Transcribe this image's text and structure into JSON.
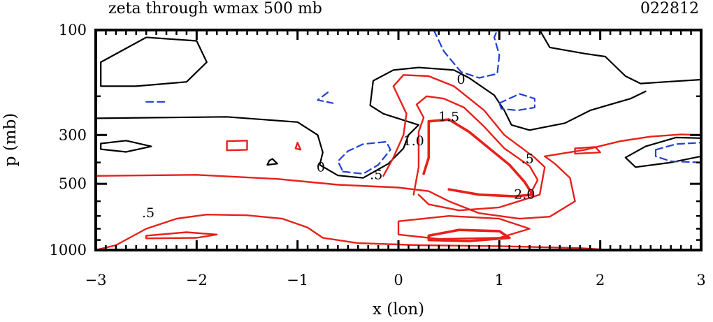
{
  "chart_data": {
    "type": "contour",
    "title": "zeta through wmax 500 mb",
    "date_label": "022812",
    "xlabel": "x (lon)",
    "ylabel": "p (mb)",
    "xlim": [
      -3,
      3
    ],
    "ylim": [
      1000,
      100
    ],
    "y_scale": "log",
    "x_ticks": [
      -3,
      -2,
      -1,
      0,
      1,
      2,
      3
    ],
    "x_tick_labels": [
      "−3",
      "−2",
      "−1",
      "0",
      "1",
      "2",
      "3"
    ],
    "y_ticks": [
      100,
      300,
      500,
      1000
    ],
    "y_tick_labels": [
      "100",
      "300",
      "500",
      "1000"
    ],
    "colors": {
      "positive": "#e8201a",
      "zero": "#000000",
      "negative": "#1f3fd6"
    },
    "contour_labels": [
      {
        "text": "0",
        "x": 0.62,
        "p": 168
      },
      {
        "text": "1.5",
        "x": 0.5,
        "p": 248
      },
      {
        "text": "1.0",
        "x": 0.15,
        "p": 320
      },
      {
        "text": ".5",
        "x": 1.28,
        "p": 385
      },
      {
        "text": "0",
        "x": -0.77,
        "p": 420
      },
      {
        "text": ".5",
        "x": -0.22,
        "p": 455
      },
      {
        "text": "2.0",
        "x": 1.25,
        "p": 560
      },
      {
        "text": ".5",
        "x": -2.48,
        "p": 680
      }
    ],
    "contours": [
      {
        "level": 0,
        "points": [
          [
            -2.95,
            180
          ],
          [
            -2.6,
            180
          ],
          [
            -2.1,
            172
          ],
          [
            -1.9,
            140
          ],
          [
            -2.0,
            112
          ],
          [
            -2.5,
            108
          ],
          [
            -2.95,
            140
          ]
        ],
        "closed": true
      },
      {
        "level": 0,
        "points": [
          [
            -3.0,
            252
          ],
          [
            -2.4,
            250
          ],
          [
            -1.7,
            248
          ],
          [
            -1.0,
            262
          ],
          [
            -0.8,
            300
          ],
          [
            -0.75,
            360
          ],
          [
            -0.78,
            410
          ],
          [
            -0.6,
            458
          ],
          [
            -0.35,
            470
          ],
          [
            -0.1,
            405
          ],
          [
            0.05,
            345
          ],
          [
            0.1,
            300
          ],
          [
            0.2,
            270
          ],
          [
            -0.15,
            240
          ],
          [
            -0.28,
            220
          ],
          [
            -0.25,
            170
          ],
          [
            -0.05,
            152
          ],
          [
            0.2,
            148
          ],
          [
            0.55,
            152
          ],
          [
            0.7,
            165
          ],
          [
            0.95,
            198
          ],
          [
            1.05,
            232
          ],
          [
            1.12,
            270
          ],
          [
            1.3,
            285
          ],
          [
            1.65,
            265
          ],
          [
            1.9,
            232
          ],
          [
            2.1,
            218
          ],
          [
            2.3,
            205
          ],
          [
            2.45,
            190
          ]
        ],
        "closed": false
      },
      {
        "level": 0,
        "points": [
          [
            -2.95,
            328
          ],
          [
            -2.7,
            318
          ],
          [
            -2.45,
            338
          ],
          [
            -2.7,
            358
          ],
          [
            -2.95,
            348
          ]
        ],
        "closed": true
      },
      {
        "level": 0,
        "points": [
          [
            -1.25,
            385
          ],
          [
            -1.2,
            405
          ],
          [
            -1.3,
            410
          ],
          [
            -1.28,
            392
          ]
        ],
        "closed": true
      },
      {
        "level": 0,
        "points": [
          [
            3.0,
            310
          ],
          [
            2.75,
            308
          ],
          [
            2.45,
            338
          ],
          [
            2.25,
            380
          ],
          [
            2.35,
            420
          ],
          [
            2.7,
            400
          ],
          [
            3.0,
            375
          ]
        ],
        "closed": false
      },
      {
        "level": 0,
        "points": [
          [
            1.4,
            100
          ],
          [
            1.5,
            120
          ],
          [
            1.85,
            128
          ],
          [
            2.05,
            132
          ],
          [
            2.25,
            162
          ],
          [
            2.4,
            175
          ],
          [
            2.65,
            172
          ],
          [
            3.0,
            168
          ]
        ],
        "closed": false
      },
      {
        "level": -0.5,
        "points": [
          [
            0.35,
            100
          ],
          [
            0.45,
            125
          ],
          [
            0.62,
            155
          ],
          [
            0.8,
            165
          ],
          [
            0.98,
            158
          ],
          [
            1.0,
            130
          ],
          [
            0.95,
            108
          ],
          [
            0.98,
            100
          ]
        ],
        "closed": false
      },
      {
        "level": -0.5,
        "points": [
          [
            1.0,
            215
          ],
          [
            1.2,
            195
          ],
          [
            1.35,
            205
          ],
          [
            1.35,
            225
          ],
          [
            1.18,
            232
          ],
          [
            1.02,
            228
          ]
        ],
        "closed": true
      },
      {
        "level": -0.5,
        "points": [
          [
            -0.55,
            440
          ],
          [
            -0.35,
            450
          ],
          [
            -0.2,
            410
          ],
          [
            -0.08,
            350
          ],
          [
            -0.12,
            322
          ],
          [
            -0.35,
            330
          ],
          [
            -0.5,
            355
          ],
          [
            -0.6,
            395
          ]
        ],
        "closed": true
      },
      {
        "level": -0.5,
        "points": [
          [
            2.55,
            350
          ],
          [
            2.75,
            330
          ],
          [
            3.0,
            325
          ],
          [
            3.0,
            400
          ],
          [
            2.7,
            395
          ],
          [
            2.55,
            375
          ]
        ],
        "closed": true
      },
      {
        "level": -0.5,
        "points": [
          [
            -2.5,
            212
          ],
          [
            -2.3,
            212
          ]
        ],
        "closed": false
      },
      {
        "level": -0.5,
        "points": [
          [
            -0.7,
            192
          ],
          [
            -0.8,
            208
          ],
          [
            -0.65,
            215
          ]
        ],
        "closed": false
      },
      {
        "level": 0.5,
        "points": [
          [
            -3.0,
            460
          ],
          [
            -2.0,
            455
          ],
          [
            -1.2,
            475
          ],
          [
            -0.6,
            505
          ],
          [
            0.0,
            520
          ],
          [
            0.3,
            540
          ],
          [
            0.5,
            600
          ],
          [
            0.8,
            680
          ],
          [
            1.2,
            720
          ],
          [
            1.5,
            705
          ],
          [
            1.75,
            600
          ],
          [
            1.7,
            470
          ],
          [
            1.55,
            405
          ],
          [
            1.45,
            375
          ],
          [
            1.85,
            350
          ],
          [
            2.2,
            320
          ],
          [
            2.5,
            305
          ],
          [
            2.8,
            298
          ],
          [
            3.0,
            300
          ]
        ],
        "closed": false
      },
      {
        "level": 0.5,
        "points": [
          [
            -3.0,
            1000
          ],
          [
            -2.8,
            950
          ],
          [
            -2.5,
            800
          ],
          [
            -2.2,
            720
          ],
          [
            -1.9,
            690
          ],
          [
            -1.5,
            695
          ],
          [
            -1.15,
            720
          ],
          [
            -0.9,
            790
          ],
          [
            -0.75,
            880
          ],
          [
            -0.4,
            930
          ],
          [
            0.2,
            950
          ],
          [
            1.0,
            960
          ],
          [
            1.8,
            980
          ],
          [
            2.1,
            1000
          ]
        ],
        "closed": false
      },
      {
        "level": 0.5,
        "points": [
          [
            -1.7,
            320
          ],
          [
            -1.5,
            318
          ],
          [
            -1.5,
            350
          ],
          [
            -1.7,
            352
          ]
        ],
        "closed": true
      },
      {
        "level": 0.5,
        "points": [
          [
            -1.0,
            325
          ],
          [
            -0.97,
            350
          ],
          [
            -1.02,
            345
          ]
        ],
        "closed": true
      },
      {
        "level": 0.5,
        "points": [
          [
            1.75,
            345
          ],
          [
            1.95,
            340
          ],
          [
            2.0,
            360
          ],
          [
            1.75,
            365
          ]
        ],
        "closed": true
      },
      {
        "level": 0.5,
        "points": [
          [
            -2.5,
            860
          ],
          [
            -2.1,
            830
          ],
          [
            -1.8,
            850
          ],
          [
            -2.0,
            880
          ],
          [
            -2.5,
            885
          ]
        ],
        "closed": true
      },
      {
        "level": 1.0,
        "points": [
          [
            -0.15,
            460
          ],
          [
            -0.05,
            380
          ],
          [
            0.05,
            300
          ],
          [
            0.08,
            240
          ],
          [
            -0.05,
            180
          ],
          [
            0.05,
            160
          ],
          [
            0.3,
            162
          ],
          [
            0.55,
            180
          ],
          [
            0.85,
            232
          ],
          [
            1.05,
            300
          ],
          [
            1.35,
            380
          ],
          [
            1.45,
            420
          ],
          [
            1.4,
            560
          ],
          [
            1.0,
            640
          ],
          [
            0.6,
            660
          ],
          [
            0.3,
            620
          ],
          [
            0.2,
            560
          ]
        ],
        "closed": false
      },
      {
        "level": 1.0,
        "points": [
          [
            0.0,
            740
          ],
          [
            0.5,
            700
          ],
          [
            1.0,
            720
          ],
          [
            1.3,
            800
          ],
          [
            1.0,
            880
          ],
          [
            0.4,
            890
          ],
          [
            0.0,
            850
          ]
        ],
        "closed": true
      },
      {
        "level": 1.5,
        "points": [
          [
            0.15,
            560
          ],
          [
            0.2,
            420
          ],
          [
            0.2,
            290
          ],
          [
            0.25,
            250
          ],
          [
            0.18,
            218
          ],
          [
            0.28,
            200
          ],
          [
            0.45,
            205
          ],
          [
            0.65,
            225
          ],
          [
            0.85,
            275
          ],
          [
            1.05,
            345
          ],
          [
            1.3,
            415
          ],
          [
            1.38,
            480
          ],
          [
            1.3,
            565
          ]
        ],
        "closed": false
      },
      {
        "level": 2.0,
        "points": [
          [
            0.25,
            450
          ],
          [
            0.3,
            380
          ],
          [
            0.3,
            280
          ],
          [
            0.3,
            260
          ],
          [
            0.5,
            255
          ],
          [
            0.7,
            290
          ],
          [
            0.9,
            345
          ],
          [
            1.1,
            410
          ],
          [
            1.25,
            490
          ],
          [
            1.33,
            560
          ],
          [
            1.15,
            570
          ],
          [
            0.8,
            560
          ],
          [
            0.5,
            530
          ]
        ],
        "closed": false
      },
      {
        "level": 2.0,
        "points": [
          [
            0.3,
            860
          ],
          [
            0.6,
            810
          ],
          [
            1.0,
            820
          ],
          [
            1.1,
            880
          ],
          [
            0.7,
            910
          ],
          [
            0.3,
            900
          ]
        ],
        "closed": true
      }
    ]
  }
}
